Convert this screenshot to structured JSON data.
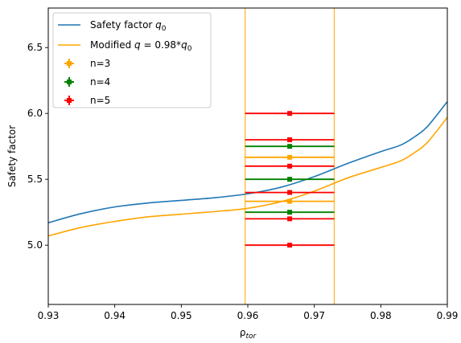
{
  "chart_data": {
    "type": "line",
    "xlabel": "ρ_tor",
    "ylabel": "Safety factor",
    "xlim": [
      0.93,
      0.99
    ],
    "ylim": [
      4.55,
      6.8
    ],
    "x_ticks": [
      "0.93",
      "0.94",
      "0.95",
      "0.96",
      "0.97",
      "0.98",
      "0.99"
    ],
    "y_ticks": [
      "5.0",
      "5.5",
      "6.0",
      "6.5"
    ],
    "grid": false,
    "legend_placement": "upper-left",
    "vertical_lines": [
      0.9596,
      0.973
    ],
    "vertical_line_color": "#ffb733",
    "series": [
      {
        "name": "Safety factor q_0",
        "color": "#1f77b4",
        "x": [
          0.93,
          0.935,
          0.94,
          0.945,
          0.95,
          0.955,
          0.96,
          0.965,
          0.97,
          0.975,
          0.98,
          0.983,
          0.985,
          0.987,
          0.99
        ],
        "y": [
          5.17,
          5.24,
          5.29,
          5.32,
          5.34,
          5.36,
          5.39,
          5.44,
          5.52,
          5.62,
          5.71,
          5.76,
          5.82,
          5.9,
          6.09
        ]
      },
      {
        "name": "Modified q = 0.98*q_0",
        "color": "#ffa500",
        "x": [
          0.93,
          0.935,
          0.94,
          0.945,
          0.95,
          0.955,
          0.96,
          0.965,
          0.97,
          0.975,
          0.98,
          0.983,
          0.985,
          0.987,
          0.99
        ],
        "y": [
          5.07,
          5.135,
          5.18,
          5.215,
          5.235,
          5.255,
          5.28,
          5.33,
          5.41,
          5.51,
          5.59,
          5.64,
          5.7,
          5.78,
          5.97
        ]
      }
    ],
    "error_series": [
      {
        "name": "n=3",
        "color": "#ffa500",
        "x": 0.9663,
        "xerr": 0.0067,
        "y": [
          5.333,
          5.667
        ]
      },
      {
        "name": "n=4",
        "color": "#008000",
        "x": 0.9663,
        "xerr": 0.0067,
        "y": [
          5.25,
          5.5,
          5.75
        ]
      },
      {
        "name": "n=5",
        "color": "#ff0000",
        "x": 0.9663,
        "xerr": 0.0067,
        "y": [
          5.0,
          5.2,
          5.4,
          5.6,
          5.8,
          6.0
        ]
      }
    ]
  }
}
